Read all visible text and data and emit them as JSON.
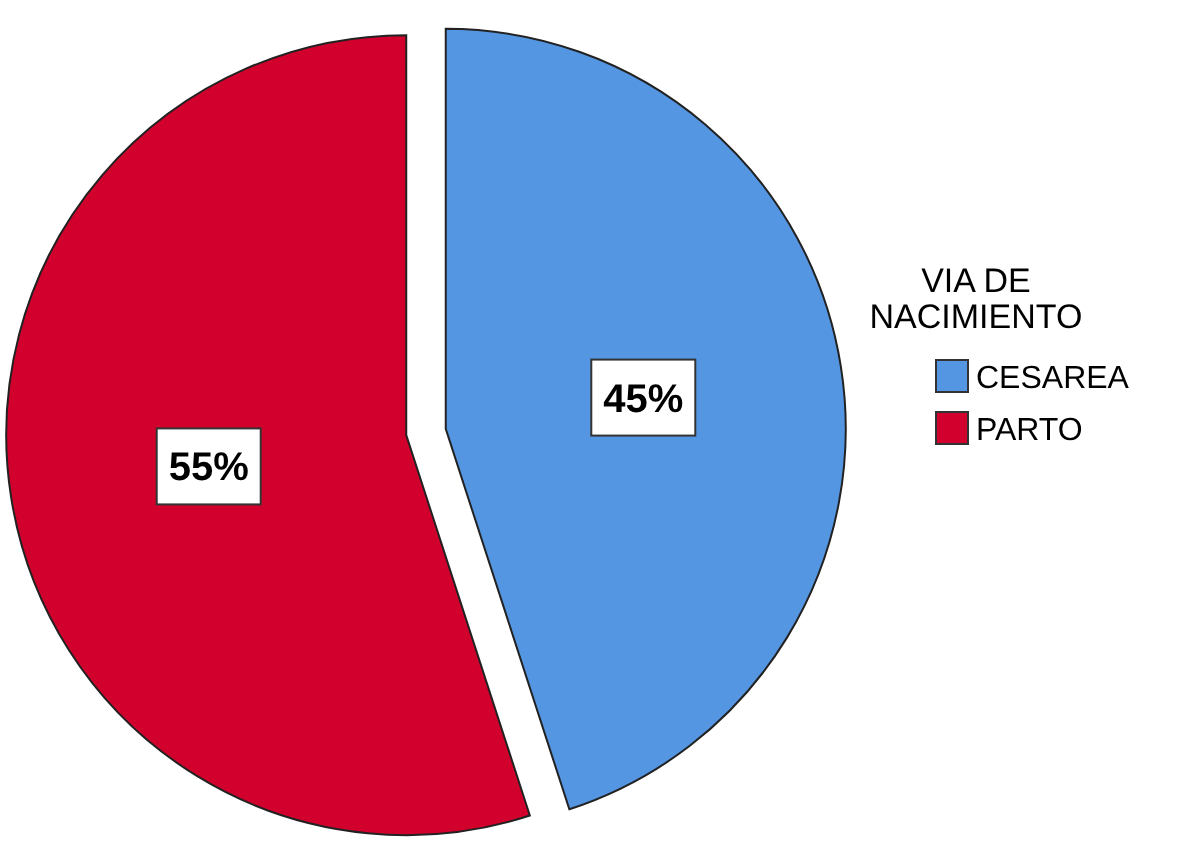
{
  "chart_data": {
    "type": "pie",
    "legend_title": "VIA DE NACIMIENTO",
    "categories": [
      "CESAREA",
      "PARTO"
    ],
    "values": [
      45,
      55
    ],
    "colors": [
      "#5596e3",
      "#d2002d"
    ],
    "value_labels": [
      "45%",
      "55%"
    ],
    "legend": "right"
  }
}
